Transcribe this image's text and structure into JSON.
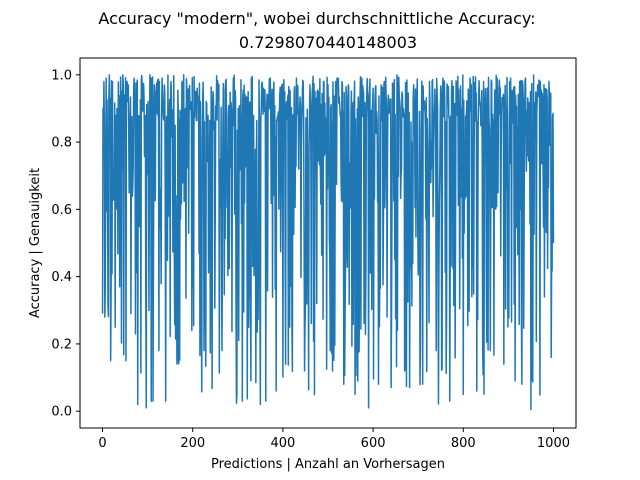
{
  "chart_data": {
    "type": "line",
    "title_line1": "Accuracy \"modern\", wobei durchschnittliche Accuracy:",
    "title_line2": "0.7298070440148003",
    "xlabel": "Predictions | Anzahl an Vorhersagen",
    "ylabel": "Accuracy | Genauigkeit",
    "xlim": [
      -50,
      1050
    ],
    "ylim": [
      -0.05,
      1.05
    ],
    "xticks": [
      0,
      200,
      400,
      600,
      800,
      1000
    ],
    "yticks": [
      0.0,
      0.2,
      0.4,
      0.6,
      0.8,
      1.0
    ],
    "xtick_labels": [
      "0",
      "200",
      "400",
      "600",
      "800",
      "1000"
    ],
    "ytick_labels": [
      "0.0",
      "0.2",
      "0.4",
      "0.6",
      "0.8",
      "1.0"
    ],
    "line_color": "#1f77b4",
    "series": [
      {
        "name": "Accuracy",
        "points": {
          "count": 1001,
          "x_start": 0,
          "mean": 0.7298070440148003,
          "min": 0.005,
          "max": 1.0,
          "x": [
            0,
            3,
            5,
            8,
            12,
            15,
            18,
            22,
            28,
            33,
            38,
            45,
            52,
            57,
            63,
            70,
            78,
            88,
            97,
            105,
            112,
            118,
            125,
            132,
            140,
            152,
            165,
            180,
            198,
            210,
            225,
            245,
            265,
            290,
            310,
            330,
            350,
            355,
            362,
            372,
            385,
            398,
            415,
            430,
            448,
            460,
            475,
            490,
            505,
            520,
            535,
            545,
            560,
            575,
            590,
            600,
            612,
            625,
            640,
            655,
            670,
            690,
            710,
            725,
            740,
            755,
            770,
            785,
            800,
            815,
            830,
            845,
            860,
            875,
            890,
            905,
            915,
            925,
            930,
            938,
            950,
            965,
            980,
            990,
            995,
            1000
          ],
          "y": [
            0.29,
            0.98,
            0.28,
            0.99,
            0.32,
            1.0,
            0.15,
            0.98,
            0.25,
            0.9,
            0.37,
            1.0,
            0.15,
            0.97,
            0.29,
            0.99,
            0.02,
            0.96,
            0.01,
            1.0,
            0.03,
            0.95,
            0.18,
            0.99,
            0.03,
            0.98,
            0.14,
            1.0,
            0.24,
            0.96,
            0.18,
            0.95,
            0.18,
            0.99,
            0.03,
            0.99,
            0.02,
            0.95,
            0.03,
            0.99,
            0.06,
            0.97,
            0.25,
            0.99,
            0.12,
            0.97,
            0.32,
            0.98,
            0.18,
            0.99,
            0.08,
            0.97,
            0.05,
            0.99,
            0.01,
            0.96,
            0.08,
            0.98,
            0.07,
            0.99,
            0.12,
            0.97,
            0.08,
            0.98,
            0.18,
            0.99,
            0.03,
            0.97,
            0.05,
            0.99,
            0.06,
            0.98,
            0.18,
            0.99,
            0.14,
            0.99,
            0.09,
            0.98,
            0.08,
            0.99,
            0.005,
            0.97,
            0.34,
            0.98,
            0.16,
            0.5
          ]
        }
      }
    ]
  }
}
